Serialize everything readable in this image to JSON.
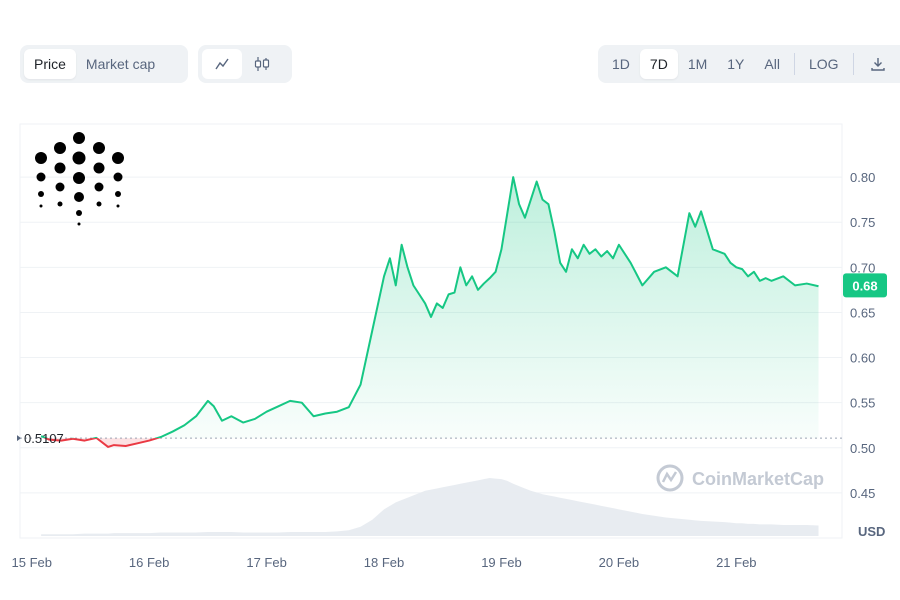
{
  "toolbar": {
    "type_tabs": [
      "Price",
      "Market cap"
    ],
    "active_type": "Price",
    "style_icons": [
      "line-chart-icon",
      "candlestick-icon"
    ],
    "ranges": [
      "1D",
      "7D",
      "1M",
      "1Y",
      "All"
    ],
    "active_range": "7D",
    "log_label": "LOG",
    "download_icon": "download-icon"
  },
  "watermark": "CoinMarketCap",
  "currency_label": "USD",
  "colors": {
    "up": "#16c784",
    "down": "#ea3943",
    "grid": "#eff2f5",
    "badge": "#16c784"
  },
  "chart_data": {
    "type": "area",
    "ylim": [
      0.42,
      0.83
    ],
    "yticks": [
      0.45,
      0.5,
      0.55,
      0.6,
      0.65,
      0.7,
      0.75,
      0.8
    ],
    "ytick_labels": [
      "0.45",
      "0.50",
      "0.55",
      "0.60",
      "0.65",
      "0.70",
      "0.75",
      "0.80"
    ],
    "xticks": [
      0,
      1,
      2,
      3,
      4,
      5,
      6
    ],
    "xtick_labels": [
      "15 Feb",
      "16 Feb",
      "17 Feb",
      "18 Feb",
      "19 Feb",
      "20 Feb",
      "21 Feb"
    ],
    "xlim": [
      -0.1,
      6.9
    ],
    "reference_value": 0.5107,
    "reference_label": "0.5107",
    "current_value": 0.68,
    "current_label": "0.68",
    "x": [
      0.08,
      0.15,
      0.25,
      0.35,
      0.45,
      0.55,
      0.65,
      0.7,
      0.8,
      0.9,
      1.0,
      1.1,
      1.2,
      1.3,
      1.4,
      1.5,
      1.55,
      1.62,
      1.7,
      1.8,
      1.9,
      2.0,
      2.1,
      2.2,
      2.3,
      2.4,
      2.5,
      2.6,
      2.7,
      2.8,
      2.9,
      3.0,
      3.05,
      3.1,
      3.15,
      3.2,
      3.25,
      3.3,
      3.35,
      3.4,
      3.45,
      3.5,
      3.55,
      3.6,
      3.65,
      3.7,
      3.75,
      3.8,
      3.85,
      3.9,
      3.95,
      4.0,
      4.05,
      4.1,
      4.15,
      4.2,
      4.25,
      4.3,
      4.35,
      4.4,
      4.45,
      4.5,
      4.55,
      4.6,
      4.65,
      4.7,
      4.75,
      4.8,
      4.85,
      4.9,
      4.95,
      5.0,
      5.1,
      5.2,
      5.3,
      5.4,
      5.5,
      5.6,
      5.65,
      5.7,
      5.8,
      5.9,
      5.95,
      6.0,
      6.05,
      6.1,
      6.15,
      6.2,
      6.25,
      6.3,
      6.4,
      6.5,
      6.6,
      6.7
    ],
    "values": [
      0.513,
      0.509,
      0.508,
      0.51,
      0.508,
      0.511,
      0.501,
      0.503,
      0.502,
      0.505,
      0.508,
      0.512,
      0.518,
      0.525,
      0.535,
      0.552,
      0.546,
      0.53,
      0.535,
      0.528,
      0.532,
      0.54,
      0.546,
      0.552,
      0.55,
      0.535,
      0.538,
      0.54,
      0.545,
      0.57,
      0.63,
      0.69,
      0.71,
      0.68,
      0.725,
      0.7,
      0.68,
      0.67,
      0.66,
      0.645,
      0.66,
      0.655,
      0.67,
      0.672,
      0.7,
      0.68,
      0.69,
      0.675,
      0.682,
      0.688,
      0.695,
      0.72,
      0.76,
      0.8,
      0.77,
      0.755,
      0.775,
      0.795,
      0.775,
      0.77,
      0.74,
      0.705,
      0.695,
      0.72,
      0.71,
      0.725,
      0.715,
      0.72,
      0.712,
      0.718,
      0.71,
      0.725,
      0.705,
      0.68,
      0.695,
      0.7,
      0.69,
      0.76,
      0.745,
      0.762,
      0.72,
      0.715,
      0.705,
      0.7,
      0.698,
      0.69,
      0.695,
      0.685,
      0.688,
      0.685,
      0.69,
      0.68,
      0.682,
      0.679
    ],
    "volume": [
      0.03,
      0.03,
      0.03,
      0.03,
      0.04,
      0.04,
      0.04,
      0.05,
      0.05,
      0.05,
      0.05,
      0.06,
      0.06,
      0.06,
      0.06,
      0.07,
      0.07,
      0.07,
      0.07,
      0.06,
      0.06,
      0.06,
      0.06,
      0.07,
      0.07,
      0.07,
      0.07,
      0.08,
      0.1,
      0.16,
      0.28,
      0.46,
      0.52,
      0.58,
      0.62,
      0.66,
      0.7,
      0.74,
      0.78,
      0.8,
      0.82,
      0.84,
      0.86,
      0.88,
      0.9,
      0.92,
      0.94,
      0.96,
      0.98,
      1.0,
      0.99,
      0.98,
      0.95,
      0.9,
      0.86,
      0.82,
      0.78,
      0.75,
      0.72,
      0.7,
      0.68,
      0.66,
      0.64,
      0.62,
      0.6,
      0.58,
      0.56,
      0.54,
      0.52,
      0.5,
      0.48,
      0.46,
      0.42,
      0.38,
      0.35,
      0.32,
      0.3,
      0.28,
      0.27,
      0.26,
      0.25,
      0.24,
      0.23,
      0.22,
      0.22,
      0.21,
      0.21,
      0.2,
      0.2,
      0.2,
      0.19,
      0.19,
      0.19,
      0.18
    ]
  }
}
